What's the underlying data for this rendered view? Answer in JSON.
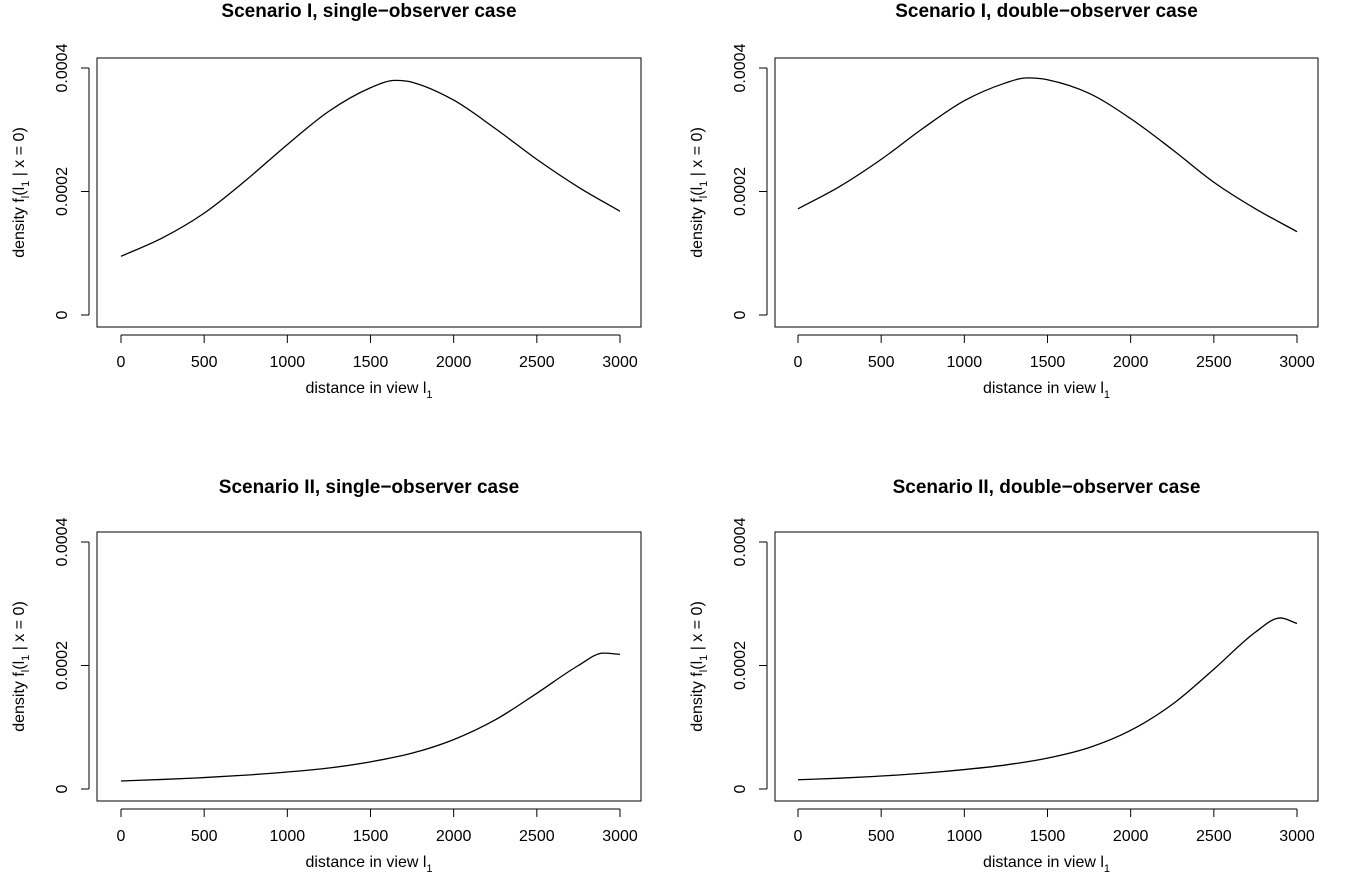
{
  "chart_data": [
    {
      "type": "line",
      "title": "Scenario I, single−observer case",
      "xlabel": {
        "prefix": "distance in view l",
        "sub": "1"
      },
      "ylabel": {
        "prefix": "density  f",
        "sub1": "l",
        "mid": "(l",
        "sub2": "1",
        "suffix": " | x = 0)"
      },
      "xlim": [
        0,
        3000
      ],
      "ylim": [
        0,
        0.0004
      ],
      "xticks": [
        0,
        500,
        1000,
        1500,
        2000,
        2500,
        3000
      ],
      "xtick_labels": [
        "0",
        "500",
        "1000",
        "1500",
        "2000",
        "2500",
        "3000"
      ],
      "yticks": [
        0,
        0.0002,
        0.0004
      ],
      "ytick_labels": [
        "0",
        "0.0002",
        "0.0004"
      ],
      "grid": false,
      "series": [
        {
          "color": "#000000",
          "x": [
            0,
            250,
            500,
            750,
            1000,
            1250,
            1500,
            1650,
            1750,
            2000,
            2250,
            2500,
            2750,
            3000
          ],
          "y": [
            9.5e-05,
            0.000125,
            0.000165,
            0.000218,
            0.000276,
            0.00033,
            0.000368,
            0.00038,
            0.000377,
            0.000348,
            0.000302,
            0.000252,
            0.000207,
            0.000168
          ]
        }
      ]
    },
    {
      "type": "line",
      "title": "Scenario I, double−observer case",
      "xlabel": {
        "prefix": "distance in view l",
        "sub": "1"
      },
      "ylabel": {
        "prefix": "density  f",
        "sub1": "l",
        "mid": "(l",
        "sub2": "1",
        "suffix": " | x = 0)"
      },
      "xlim": [
        0,
        3000
      ],
      "ylim": [
        0,
        0.0004
      ],
      "xticks": [
        0,
        500,
        1000,
        1500,
        2000,
        2500,
        3000
      ],
      "xtick_labels": [
        "0",
        "500",
        "1000",
        "1500",
        "2000",
        "2500",
        "3000"
      ],
      "yticks": [
        0,
        0.0002,
        0.0004
      ],
      "ytick_labels": [
        "0",
        "0.0002",
        "0.0004"
      ],
      "grid": false,
      "series": [
        {
          "color": "#000000",
          "x": [
            0,
            250,
            500,
            750,
            1000,
            1250,
            1380,
            1500,
            1750,
            2000,
            2250,
            2500,
            2750,
            3000
          ],
          "y": [
            0.000172,
            0.000208,
            0.000252,
            0.000302,
            0.000347,
            0.000376,
            0.000384,
            0.000381,
            0.000359,
            0.000318,
            0.000268,
            0.000215,
            0.000172,
            0.000135
          ]
        }
      ]
    },
    {
      "type": "line",
      "title": "Scenario II, single−observer case",
      "xlabel": {
        "prefix": "distance in view l",
        "sub": "1"
      },
      "ylabel": {
        "prefix": "density  f",
        "sub1": "l",
        "mid": "(l",
        "sub2": "1",
        "suffix": " | x = 0)"
      },
      "xlim": [
        0,
        3000
      ],
      "ylim": [
        0,
        0.0004
      ],
      "xticks": [
        0,
        500,
        1000,
        1500,
        2000,
        2500,
        3000
      ],
      "xtick_labels": [
        "0",
        "500",
        "1000",
        "1500",
        "2000",
        "2500",
        "3000"
      ],
      "yticks": [
        0,
        0.0002,
        0.0004
      ],
      "ytick_labels": [
        "0",
        "0.0002",
        "0.0004"
      ],
      "grid": false,
      "series": [
        {
          "color": "#000000",
          "x": [
            0,
            250,
            500,
            750,
            1000,
            1250,
            1500,
            1750,
            2000,
            2250,
            2500,
            2750,
            2900,
            3000
          ],
          "y": [
            1.3e-05,
            1.55e-05,
            1.85e-05,
            2.25e-05,
            2.75e-05,
            3.4e-05,
            4.4e-05,
            5.8e-05,
            8e-05,
            0.000112,
            0.000155,
            0.0002,
            0.00022,
            0.000218
          ]
        }
      ]
    },
    {
      "type": "line",
      "title": "Scenario II, double−observer case",
      "xlabel": {
        "prefix": "distance in view l",
        "sub": "1"
      },
      "ylabel": {
        "prefix": "density  f",
        "sub1": "l",
        "mid": "(l",
        "sub2": "1",
        "suffix": " | x = 0)"
      },
      "xlim": [
        0,
        3000
      ],
      "ylim": [
        0,
        0.0004
      ],
      "xticks": [
        0,
        500,
        1000,
        1500,
        2000,
        2500,
        3000
      ],
      "xtick_labels": [
        "0",
        "500",
        "1000",
        "1500",
        "2000",
        "2500",
        "3000"
      ],
      "yticks": [
        0,
        0.0002,
        0.0004
      ],
      "ytick_labels": [
        "0",
        "0.0002",
        "0.0004"
      ],
      "grid": false,
      "series": [
        {
          "color": "#000000",
          "x": [
            0,
            250,
            500,
            750,
            1000,
            1250,
            1500,
            1750,
            2000,
            2250,
            2500,
            2750,
            2900,
            3000
          ],
          "y": [
            1.5e-05,
            1.75e-05,
            2.1e-05,
            2.55e-05,
            3.15e-05,
            3.9e-05,
            5e-05,
            6.7e-05,
            9.5e-05,
            0.000137,
            0.000194,
            0.000254,
            0.000277,
            0.000268
          ]
        }
      ]
    }
  ]
}
